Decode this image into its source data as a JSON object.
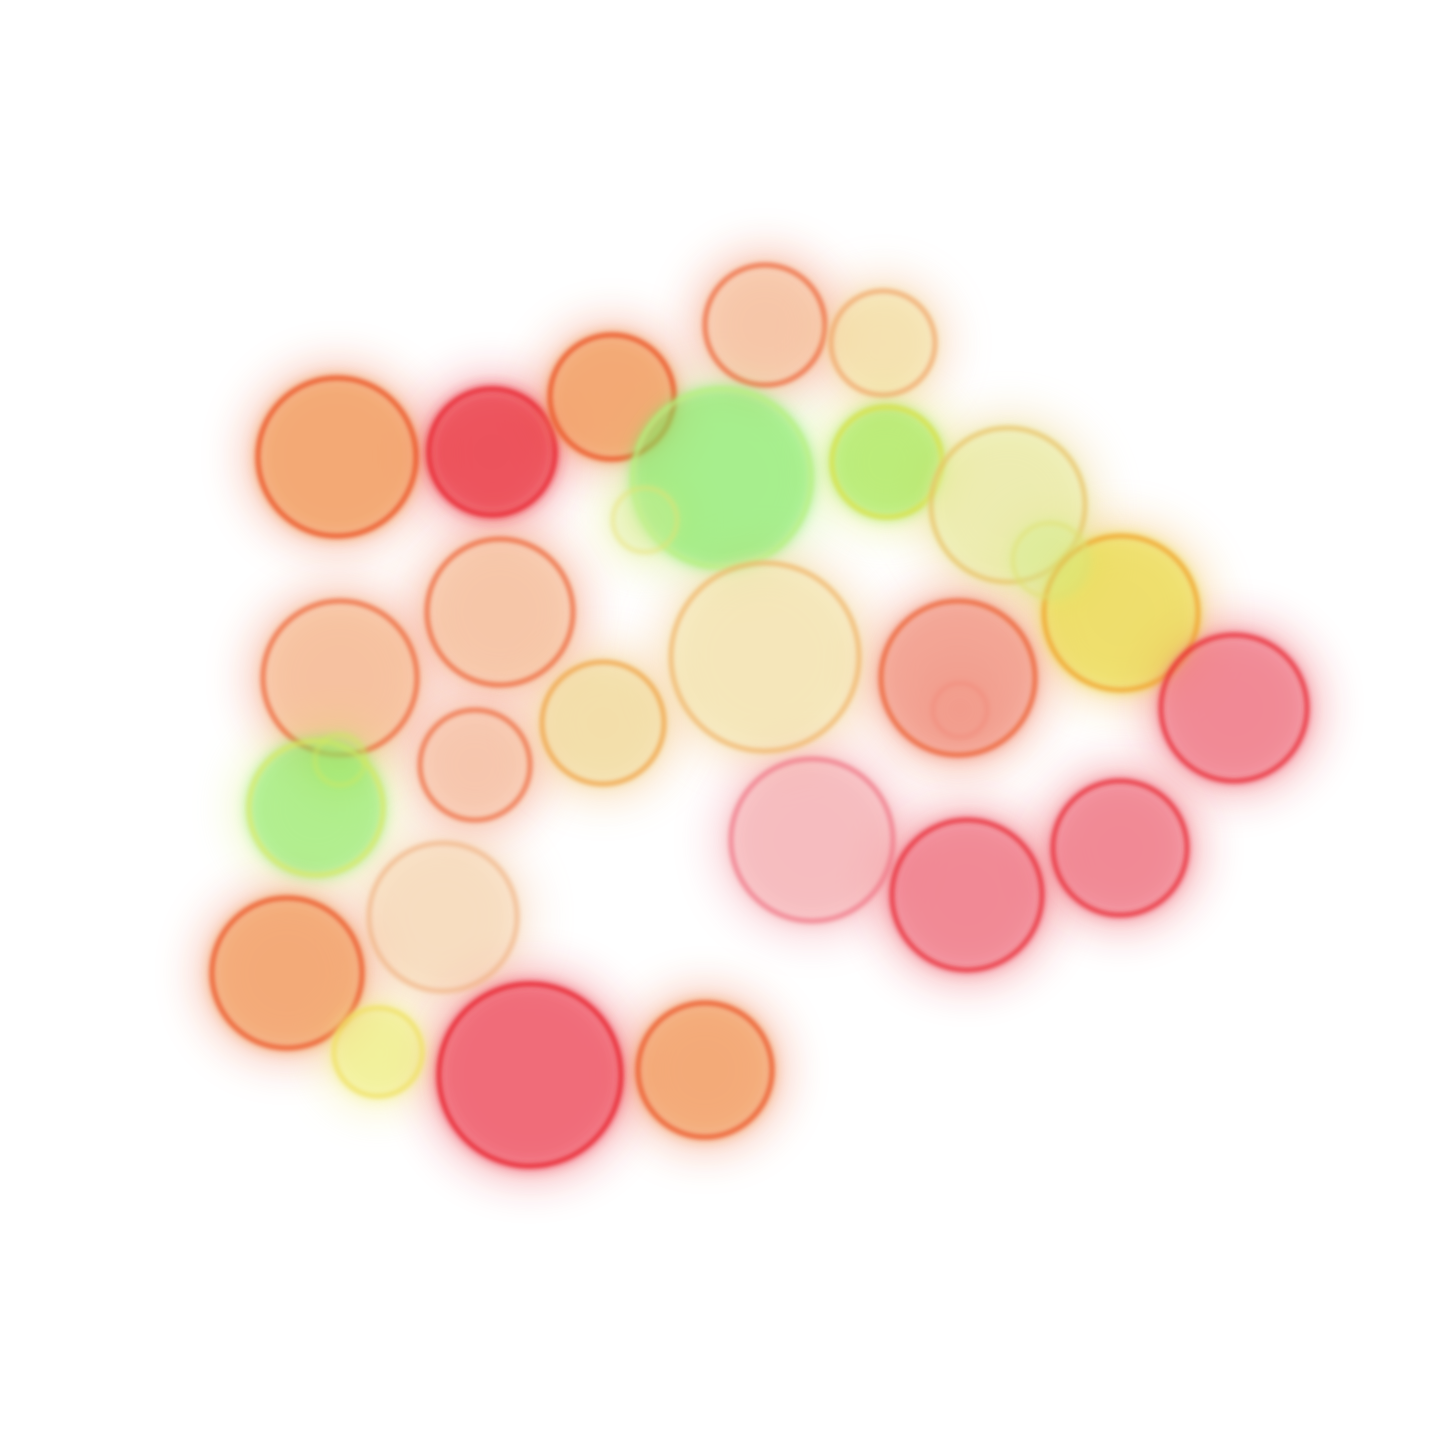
{
  "image": {
    "subject": "fluorescence-cell-cluster",
    "background_color": "#ffffff",
    "cell_count": 30
  },
  "palette": {
    "red": "#e8202e",
    "orange": "#ec5a2c",
    "pale_orange": "#f2a060",
    "yellow": "#e8e040",
    "green": "#7ee860",
    "pink": "#ee7080"
  }
}
